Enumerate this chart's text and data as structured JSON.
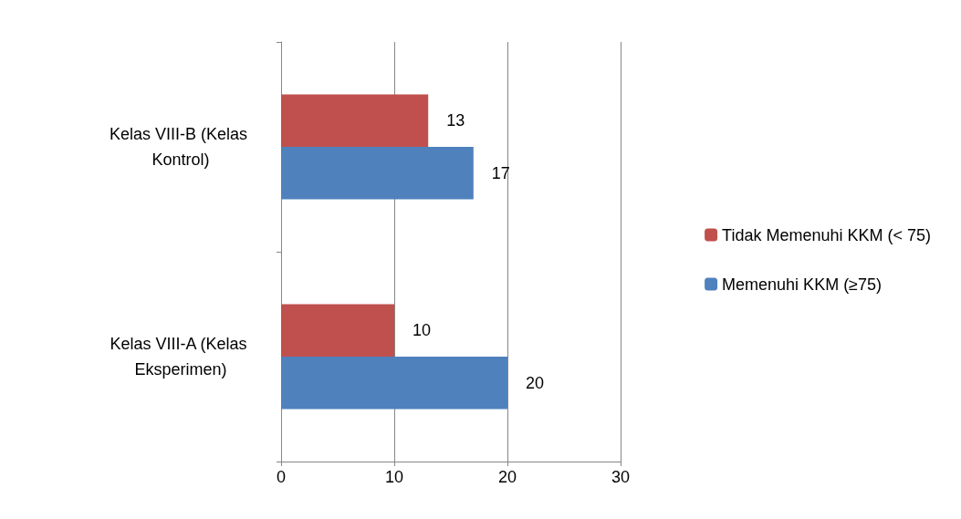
{
  "chart_data": {
    "type": "bar",
    "orientation": "horizontal",
    "categories": [
      "Kelas VIII-B (Kelas Kontrol)",
      "Kelas VIII-A (Kelas Eksperimen)"
    ],
    "series": [
      {
        "name": "Tidak Memenuhi KKM (< 75)",
        "color": "#c0504d",
        "values": [
          13,
          10
        ]
      },
      {
        "name": "Memenuhi KKM (≥75)",
        "color": "#4f81bd",
        "values": [
          17,
          20
        ]
      }
    ],
    "xlim": [
      0,
      30
    ],
    "xticks": [
      0,
      10,
      20,
      30
    ],
    "grid": "x",
    "legend": "right",
    "data_labels": true
  }
}
